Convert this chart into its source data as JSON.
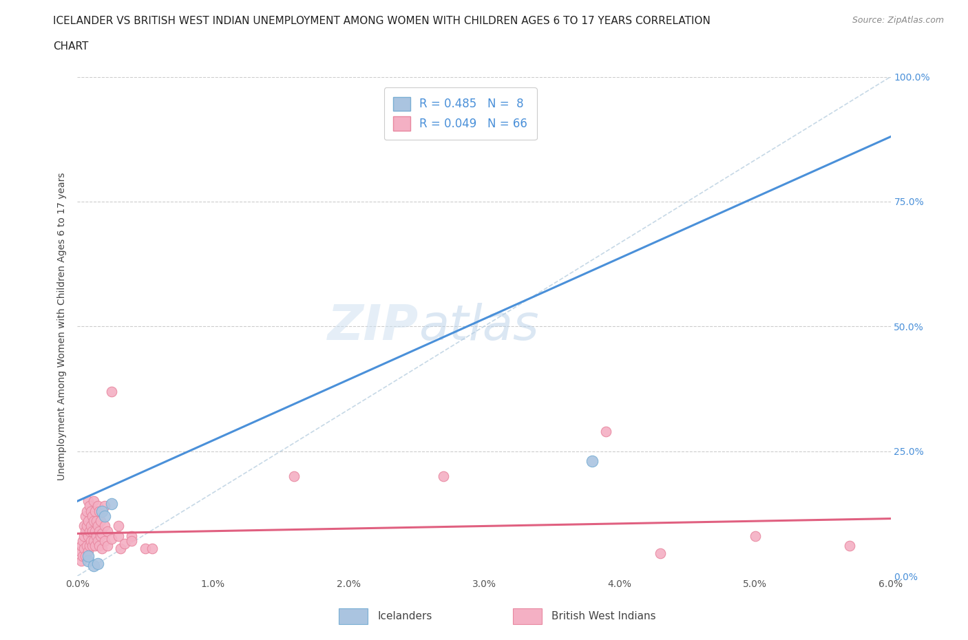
{
  "title_line1": "ICELANDER VS BRITISH WEST INDIAN UNEMPLOYMENT AMONG WOMEN WITH CHILDREN AGES 6 TO 17 YEARS CORRELATION",
  "title_line2": "CHART",
  "source": "Source: ZipAtlas.com",
  "ylabel": "Unemployment Among Women with Children Ages 6 to 17 years",
  "xlim": [
    0.0,
    0.06
  ],
  "ylim": [
    0.0,
    1.0
  ],
  "xticks": [
    0.0,
    0.01,
    0.02,
    0.03,
    0.04,
    0.05,
    0.06
  ],
  "xticklabels": [
    "0.0%",
    "1.0%",
    "2.0%",
    "3.0%",
    "4.0%",
    "5.0%",
    "6.0%"
  ],
  "yticks": [
    0.0,
    0.25,
    0.5,
    0.75,
    1.0
  ],
  "yticklabels": [
    "0.0%",
    "25.0%",
    "50.0%",
    "75.0%",
    "100.0%"
  ],
  "background_color": "#ffffff",
  "grid_color": "#cccccc",
  "icelander_color": "#aac4e0",
  "icelander_edge": "#7aafd4",
  "bwi_color": "#f4b0c4",
  "bwi_edge": "#e888a0",
  "blue_line_color": "#4a90d9",
  "pink_line_color": "#e06080",
  "diag_line_color": "#b8cfe0",
  "R_icelander": 0.485,
  "N_icelander": 8,
  "R_bwi": 0.049,
  "N_bwi": 66,
  "legend_text_color": "#4a90d9",
  "watermark_zip": "ZIP",
  "watermark_atlas": "atlas",
  "icelander_points": [
    [
      0.0008,
      0.03
    ],
    [
      0.0008,
      0.04
    ],
    [
      0.0012,
      0.02
    ],
    [
      0.0015,
      0.025
    ],
    [
      0.0018,
      0.13
    ],
    [
      0.002,
      0.12
    ],
    [
      0.0025,
      0.145
    ],
    [
      0.038,
      0.23
    ]
  ],
  "bwi_points": [
    [
      0.0002,
      0.05
    ],
    [
      0.0003,
      0.03
    ],
    [
      0.0003,
      0.06
    ],
    [
      0.0004,
      0.04
    ],
    [
      0.0004,
      0.07
    ],
    [
      0.0005,
      0.055
    ],
    [
      0.0005,
      0.08
    ],
    [
      0.0005,
      0.1
    ],
    [
      0.0006,
      0.04
    ],
    [
      0.0006,
      0.09
    ],
    [
      0.0006,
      0.12
    ],
    [
      0.0007,
      0.06
    ],
    [
      0.0007,
      0.1
    ],
    [
      0.0007,
      0.13
    ],
    [
      0.0008,
      0.05
    ],
    [
      0.0008,
      0.08
    ],
    [
      0.0008,
      0.11
    ],
    [
      0.0008,
      0.15
    ],
    [
      0.0009,
      0.06
    ],
    [
      0.0009,
      0.09
    ],
    [
      0.0009,
      0.14
    ],
    [
      0.001,
      0.07
    ],
    [
      0.001,
      0.1
    ],
    [
      0.001,
      0.13
    ],
    [
      0.0011,
      0.06
    ],
    [
      0.0011,
      0.09
    ],
    [
      0.0011,
      0.12
    ],
    [
      0.0012,
      0.07
    ],
    [
      0.0012,
      0.11
    ],
    [
      0.0012,
      0.15
    ],
    [
      0.0013,
      0.06
    ],
    [
      0.0013,
      0.09
    ],
    [
      0.0013,
      0.13
    ],
    [
      0.0014,
      0.08
    ],
    [
      0.0014,
      0.11
    ],
    [
      0.0015,
      0.07
    ],
    [
      0.0015,
      0.1
    ],
    [
      0.0015,
      0.14
    ],
    [
      0.0016,
      0.06
    ],
    [
      0.0016,
      0.09
    ],
    [
      0.0016,
      0.13
    ],
    [
      0.0017,
      0.08
    ],
    [
      0.0017,
      0.11
    ],
    [
      0.0018,
      0.055
    ],
    [
      0.0018,
      0.085
    ],
    [
      0.002,
      0.07
    ],
    [
      0.002,
      0.1
    ],
    [
      0.002,
      0.14
    ],
    [
      0.0022,
      0.06
    ],
    [
      0.0022,
      0.09
    ],
    [
      0.0025,
      0.075
    ],
    [
      0.0025,
      0.37
    ],
    [
      0.003,
      0.08
    ],
    [
      0.003,
      0.1
    ],
    [
      0.0032,
      0.055
    ],
    [
      0.0035,
      0.065
    ],
    [
      0.004,
      0.08
    ],
    [
      0.004,
      0.07
    ],
    [
      0.005,
      0.055
    ],
    [
      0.0055,
      0.055
    ],
    [
      0.016,
      0.2
    ],
    [
      0.027,
      0.2
    ],
    [
      0.039,
      0.29
    ],
    [
      0.043,
      0.045
    ],
    [
      0.05,
      0.08
    ],
    [
      0.057,
      0.06
    ]
  ],
  "blue_line_x": [
    0.0,
    0.06
  ],
  "blue_line_y": [
    0.15,
    0.88
  ],
  "pink_line_x": [
    0.0,
    0.06
  ],
  "pink_line_y": [
    0.085,
    0.115
  ]
}
